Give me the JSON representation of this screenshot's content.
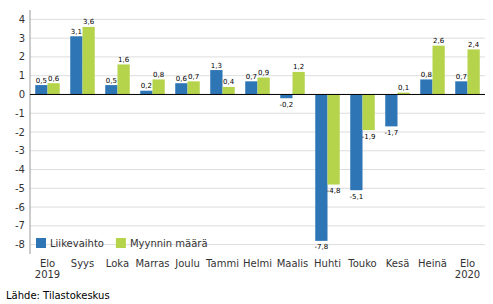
{
  "chart_data": {
    "type": "bar",
    "categories": [
      "Elo\n2019",
      "Syys",
      "Loka",
      "Marras",
      "Joulu",
      "Tammi",
      "Helmi",
      "Maalis",
      "Huhti",
      "Touko",
      "Kesä",
      "Heinä",
      "Elo\n2020"
    ],
    "series": [
      {
        "name": "Liikevaihto",
        "color": "#2E75B6",
        "values": [
          0.5,
          3.1,
          0.5,
          0.2,
          0.6,
          1.3,
          0.7,
          -0.2,
          -7.8,
          -5.1,
          -1.7,
          0.8,
          0.7
        ],
        "value_labels": [
          "0,5",
          "3,1",
          "0,5",
          "0,2",
          "0,6",
          "1,3",
          "0,7",
          "-0,2",
          "-7,8",
          "-5,1",
          "-1,7",
          "0,8",
          "0,7"
        ]
      },
      {
        "name": "Myynnin määrä",
        "color": "#B5D44C",
        "values": [
          0.6,
          3.6,
          1.6,
          0.8,
          0.7,
          0.4,
          0.9,
          1.2,
          -4.8,
          -1.9,
          0.1,
          2.6,
          2.4
        ],
        "value_labels": [
          "0,6",
          "3,6",
          "1,6",
          "0,8",
          "0,7",
          "0,4",
          "0,9",
          "1,2",
          "-4,8",
          "-1,9",
          "0,1",
          "2,6",
          "2,4"
        ]
      }
    ],
    "ylim": [
      -8.5,
      4.5
    ],
    "yticks": [
      -8,
      -7,
      -6,
      -5,
      -4,
      -3,
      -2,
      -1,
      0,
      1,
      2,
      3,
      4
    ],
    "grid": true,
    "legend": "lower left",
    "data_labels": true,
    "annotations": [
      "Lähde: Tilastokeskus"
    ]
  }
}
